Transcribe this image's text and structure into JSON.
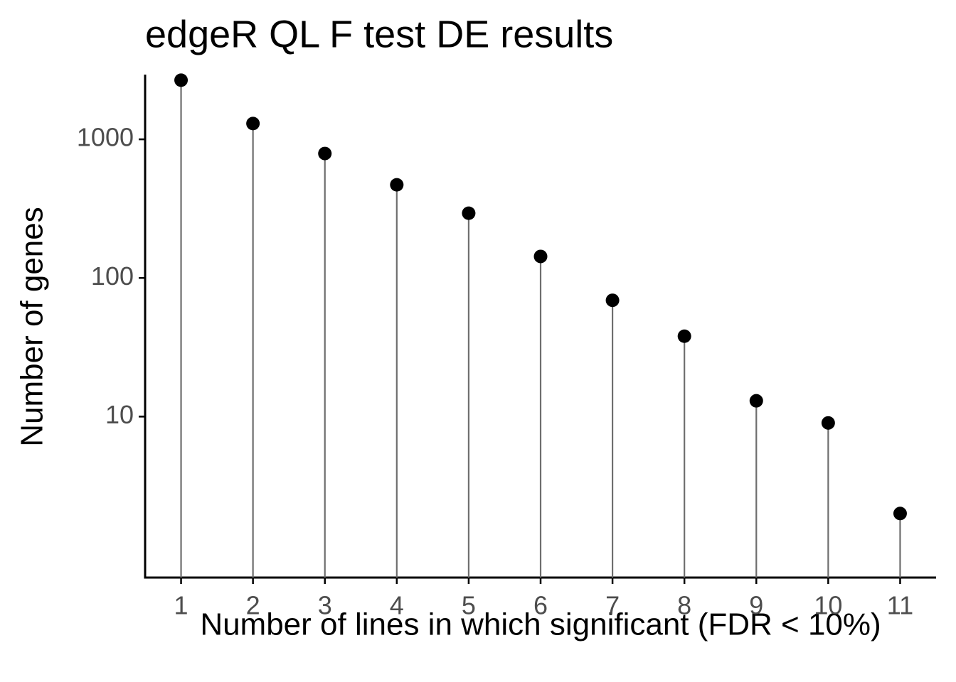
{
  "chart_data": {
    "type": "lollipop",
    "title": "edgeR QL F test DE results",
    "x_label": "Number of lines in which significant (FDR < 10%)",
    "y_label": "Number of genes",
    "x": [
      1,
      2,
      3,
      4,
      5,
      6,
      7,
      8,
      9,
      10,
      11
    ],
    "values": [
      2670,
      1300,
      790,
      470,
      293,
      143,
      69,
      38,
      13,
      9,
      2
    ],
    "color": "#000000",
    "stem_color": "#6e6e6e",
    "xlim": [
      0.5,
      11.5
    ],
    "xticks": [
      1,
      2,
      3,
      4,
      5,
      6,
      7,
      8,
      9,
      10,
      11
    ],
    "ylim": [
      0.69,
      2930
    ],
    "yticks": [
      10,
      100,
      1000
    ],
    "y_log": true,
    "grid": false
  }
}
